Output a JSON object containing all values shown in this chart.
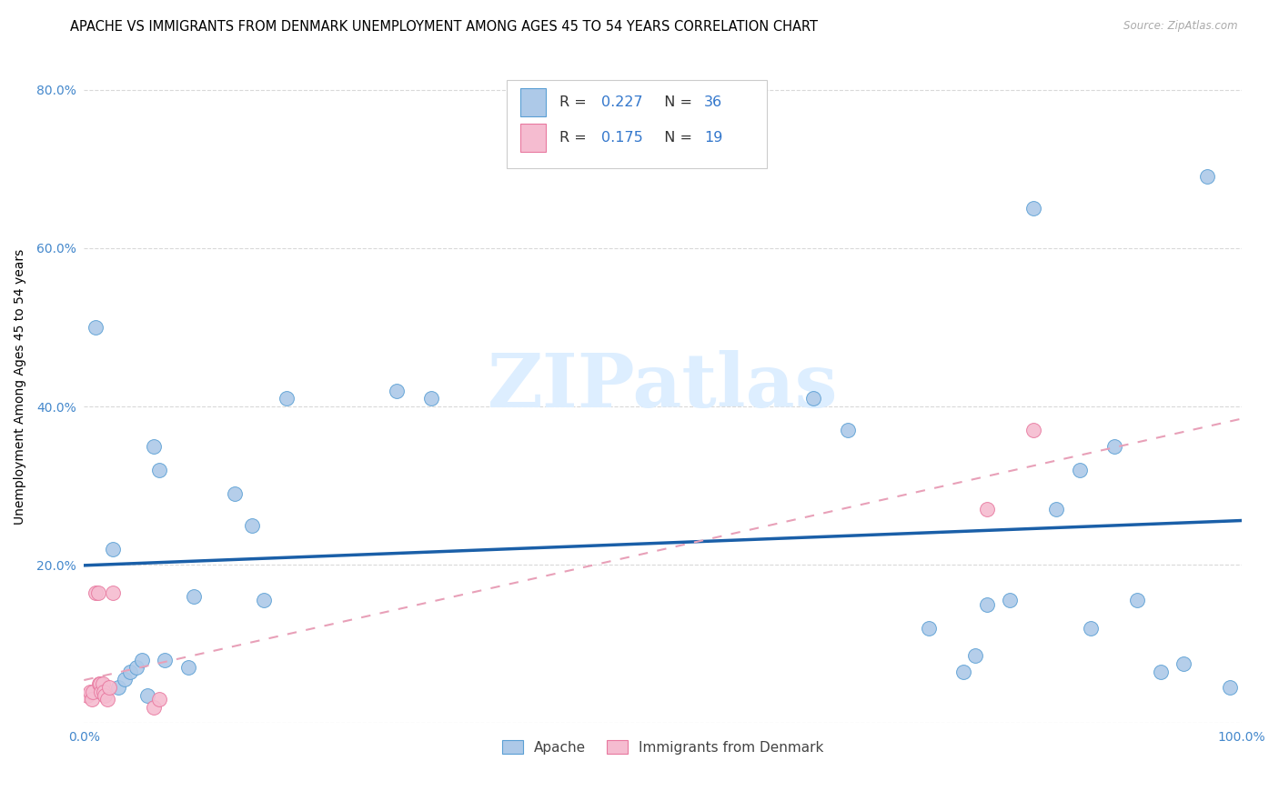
{
  "title": "APACHE VS IMMIGRANTS FROM DENMARK UNEMPLOYMENT AMONG AGES 45 TO 54 YEARS CORRELATION CHART",
  "source": "Source: ZipAtlas.com",
  "ylabel": "Unemployment Among Ages 45 to 54 years",
  "xlim": [
    0.0,
    1.0
  ],
  "ylim": [
    0.0,
    0.85
  ],
  "xtick_positions": [
    0.0,
    0.1,
    0.2,
    0.3,
    0.4,
    0.5,
    0.6,
    0.7,
    0.8,
    0.9,
    1.0
  ],
  "xtick_labels": [
    "0.0%",
    "",
    "",
    "",
    "",
    "",
    "",
    "",
    "",
    "",
    "100.0%"
  ],
  "ytick_positions": [
    0.0,
    0.2,
    0.4,
    0.6,
    0.8
  ],
  "ytick_labels": [
    "",
    "20.0%",
    "40.0%",
    "60.0%",
    "80.0%"
  ],
  "apache_color": "#adc9e8",
  "apache_edge_color": "#5a9fd4",
  "denmark_color": "#f5bcd0",
  "denmark_edge_color": "#e8789f",
  "trend_apache_color": "#1a5fa8",
  "trend_denmark_color": "#e8a0b8",
  "grid_color": "#d0d0d0",
  "watermark_color": "#ddeeff",
  "legend_R_color": "#3377cc",
  "tick_color": "#4488cc",
  "apache_x": [
    0.01,
    0.025,
    0.03,
    0.035,
    0.04,
    0.045,
    0.05,
    0.055,
    0.06,
    0.065,
    0.07,
    0.09,
    0.095,
    0.13,
    0.145,
    0.155,
    0.175,
    0.27,
    0.3,
    0.63,
    0.66,
    0.73,
    0.76,
    0.77,
    0.78,
    0.8,
    0.82,
    0.84,
    0.86,
    0.87,
    0.89,
    0.91,
    0.93,
    0.95,
    0.97,
    0.99
  ],
  "apache_y": [
    0.5,
    0.22,
    0.045,
    0.055,
    0.065,
    0.07,
    0.08,
    0.035,
    0.35,
    0.32,
    0.08,
    0.07,
    0.16,
    0.29,
    0.25,
    0.155,
    0.41,
    0.42,
    0.41,
    0.41,
    0.37,
    0.12,
    0.065,
    0.085,
    0.15,
    0.155,
    0.65,
    0.27,
    0.32,
    0.12,
    0.35,
    0.155,
    0.065,
    0.075,
    0.69,
    0.045
  ],
  "denmark_x": [
    0.003,
    0.005,
    0.007,
    0.008,
    0.01,
    0.012,
    0.013,
    0.014,
    0.015,
    0.016,
    0.017,
    0.018,
    0.02,
    0.022,
    0.025,
    0.06,
    0.065,
    0.78,
    0.82
  ],
  "denmark_y": [
    0.035,
    0.04,
    0.03,
    0.04,
    0.165,
    0.165,
    0.05,
    0.05,
    0.04,
    0.05,
    0.04,
    0.035,
    0.03,
    0.045,
    0.165,
    0.02,
    0.03,
    0.27,
    0.37
  ],
  "legend_R_apache": "0.227",
  "legend_N_apache": "36",
  "legend_R_denmark": "0.175",
  "legend_N_denmark": "19",
  "marker_size": 130,
  "title_fontsize": 10.5,
  "ylabel_fontsize": 10,
  "tick_fontsize": 10,
  "legend_fontsize": 11.5
}
